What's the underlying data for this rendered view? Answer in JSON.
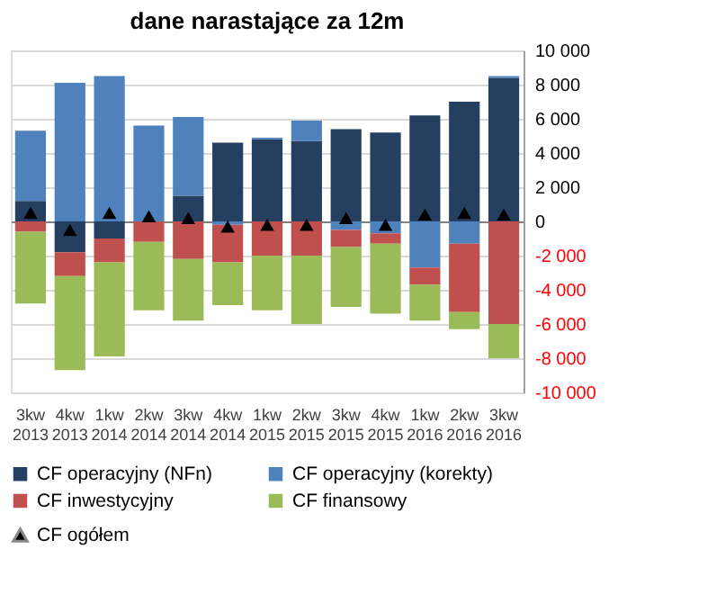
{
  "chart_data": {
    "type": "bar",
    "title": "dane narastające za 12m",
    "stacked": true,
    "legend": "bottom",
    "grid": "y",
    "categories": [
      "3kw 2013",
      "4kw 2013",
      "1kw 2014",
      "2kw 2014",
      "3kw 2014",
      "4kw 2014",
      "1kw 2015",
      "2kw 2015",
      "3kw 2015",
      "4kw 2015",
      "1kw 2016",
      "2kw 2016",
      "3kw 2016"
    ],
    "ylim": [
      -10000,
      10000
    ],
    "yticks": [
      {
        "value": -10000,
        "label": "-10 000"
      },
      {
        "value": -8000,
        "label": "-8 000"
      },
      {
        "value": -6000,
        "label": "-6 000"
      },
      {
        "value": -4000,
        "label": "-4 000"
      },
      {
        "value": -2000,
        "label": "-2 000"
      },
      0,
      {
        "value": 2000,
        "label": "2 000"
      },
      {
        "value": 4000,
        "label": "4 000"
      },
      {
        "value": 6000,
        "label": "6 000"
      },
      {
        "value": 8000,
        "label": "8 000"
      },
      {
        "value": 10000,
        "label": "10 000"
      }
    ],
    "series": [
      {
        "name": "CF operacyjny (NFn)",
        "color": "#243f60",
        "values": [
          1200,
          -1800,
          -1000,
          null,
          1500,
          4600,
          4800,
          4700,
          5400,
          5200,
          6200,
          7000,
          8400
        ]
      },
      {
        "name": "CF operacyjny (korekty)",
        "color": "#4f81bd",
        "values": [
          4100,
          8100,
          8500,
          5600,
          4600,
          -200,
          100,
          1200,
          -500,
          -700,
          -2700,
          -1300,
          100
        ]
      },
      {
        "name": "CF inwestycyjny",
        "color": "#c0504d",
        "values": [
          -600,
          -1400,
          -1400,
          -1200,
          -2200,
          -2200,
          -2000,
          -2000,
          -1000,
          -600,
          -1000,
          -4000,
          -6000
        ]
      },
      {
        "name": "CF finansowy",
        "color": "#9bbb59",
        "values": [
          -4200,
          -5500,
          -5500,
          -4000,
          -3600,
          -2500,
          -3200,
          -4000,
          -3500,
          -4100,
          -2100,
          -1000,
          -2000
        ]
      },
      {
        "name": "CF ogółem",
        "color": "#000000",
        "type": "scatter",
        "marker": "triangle",
        "values": [
          500,
          -500,
          500,
          300,
          200,
          -300,
          -200,
          -200,
          200,
          -200,
          400,
          500,
          400
        ]
      }
    ]
  }
}
